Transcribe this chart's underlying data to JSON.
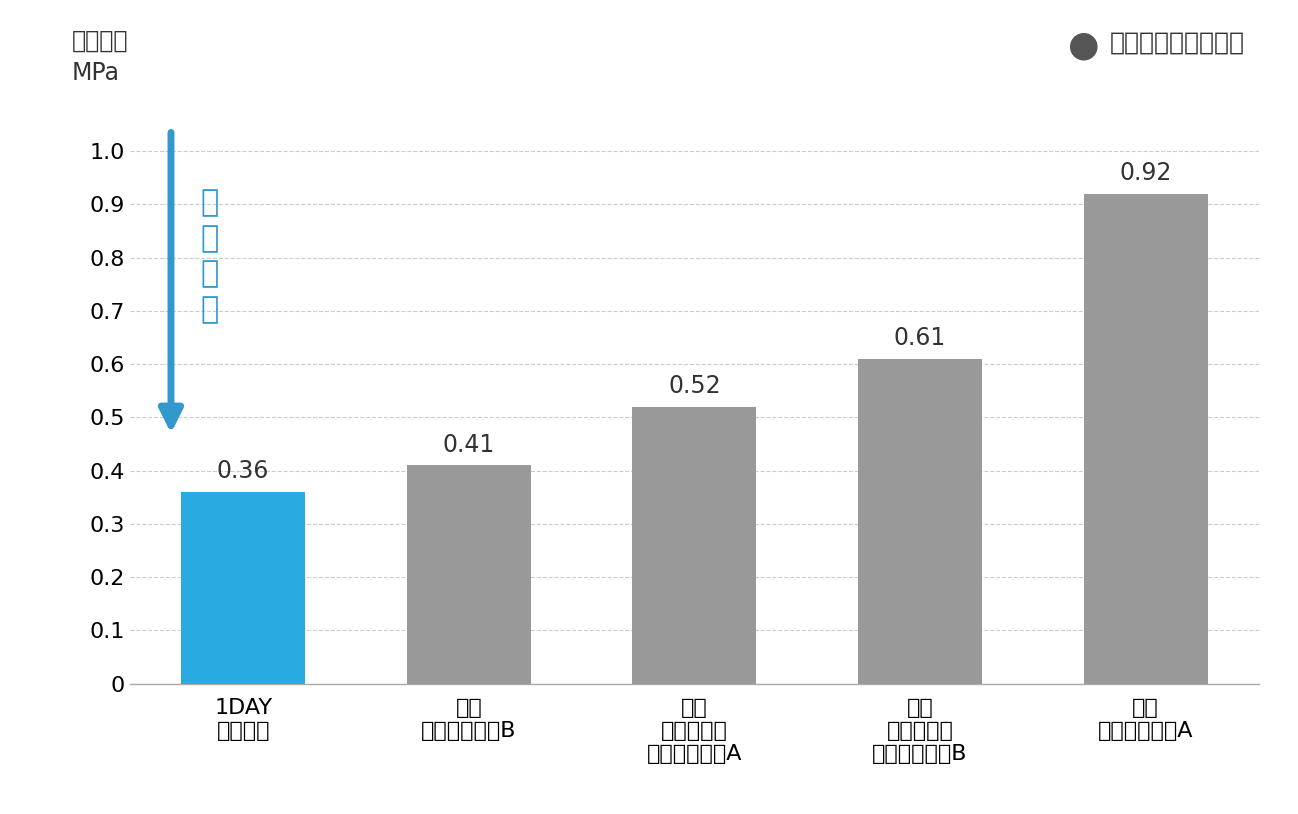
{
  "categories": [
    "1DAY\nプレミオ",
    "他社\nハイドロゲルB",
    "他社\nシリコーン\nハイドロゲルA",
    "他社\nシリコーン\nハイドロゲルB",
    "他社\nハイドロゲルA"
  ],
  "values": [
    0.36,
    0.41,
    0.52,
    0.61,
    0.92
  ],
  "bar_colors": [
    "#29aae1",
    "#999999",
    "#999999",
    "#999999",
    "#999999"
  ],
  "value_labels": [
    "0.36",
    "0.41",
    "0.52",
    "0.61",
    "0.92"
  ],
  "ylabel_line1": "ヤング率",
  "ylabel_line2": "MPa",
  "ylim": [
    0,
    1.1
  ],
  "yticks": [
    0,
    0.1,
    0.2,
    0.3,
    0.4,
    0.5,
    0.6,
    0.7,
    0.8,
    0.9,
    1.0
  ],
  "legend_text": "メニコン社内データ",
  "legend_marker_color": "#555555",
  "arrow_text": "柔\nら\nか\nい",
  "arrow_color": "#3399cc",
  "arrow_text_color": "#3399cc",
  "bg_color": "#ffffff",
  "plot_bg_color": "#ffffff",
  "grid_color": "#cccccc",
  "bar_label_fontsize": 17,
  "axis_label_fontsize": 17,
  "tick_fontsize": 16,
  "legend_fontsize": 18,
  "arrow_text_fontsize": 22
}
